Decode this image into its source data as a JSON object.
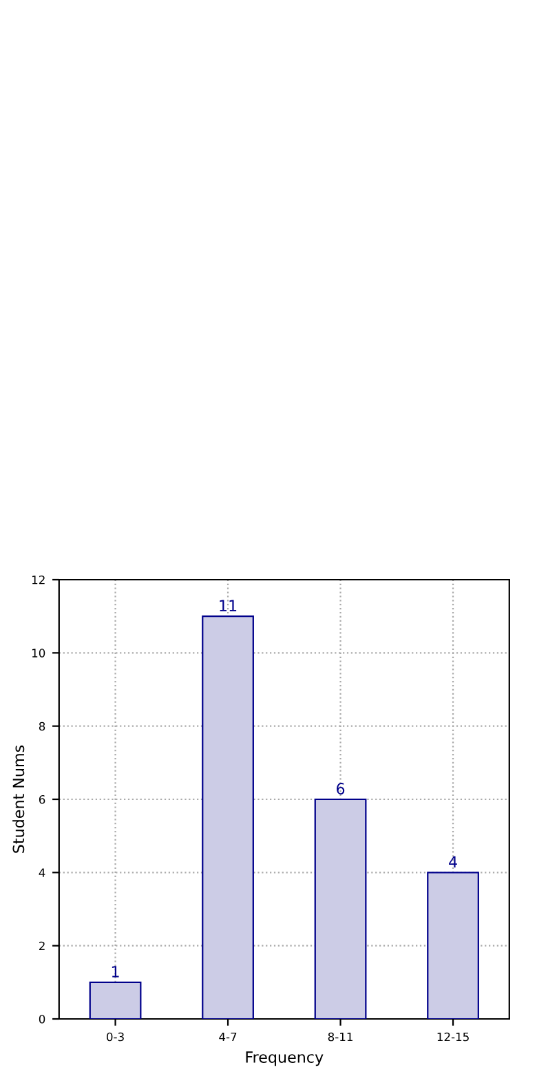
{
  "chart_data": {
    "type": "bar",
    "categories": [
      "0-3",
      "4-7",
      "8-11",
      "12-15"
    ],
    "values": [
      1,
      11,
      6,
      4
    ],
    "color": "#ccccE6",
    "data_labels": true,
    "xlabel": "Frequency",
    "ylabel": "Student Nums",
    "ylim": [
      0,
      12
    ],
    "yticks": [
      0,
      2,
      4,
      6,
      8,
      10,
      12
    ],
    "grid": true
  }
}
